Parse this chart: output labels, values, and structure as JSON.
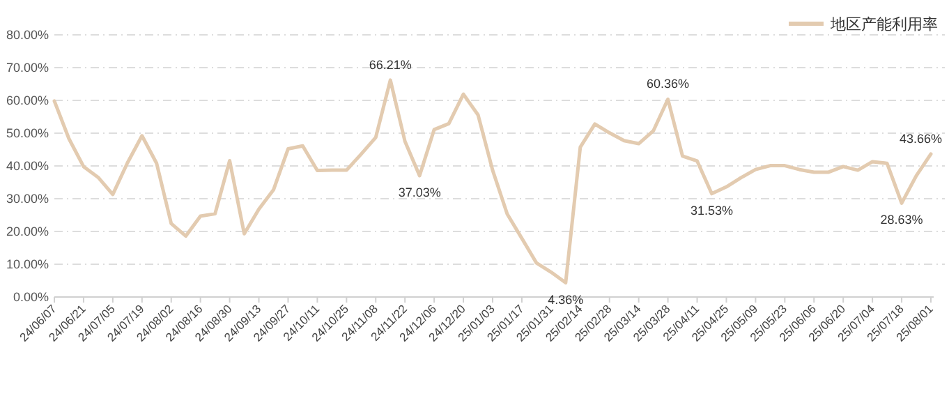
{
  "chart_data": {
    "type": "line",
    "categories": [
      "24/06/07",
      null,
      "24/06/21",
      null,
      "24/07/05",
      null,
      "24/07/19",
      null,
      "24/08/02",
      null,
      "24/08/16",
      null,
      "24/08/30",
      null,
      "24/09/13",
      null,
      "24/09/27",
      null,
      "24/10/11",
      null,
      "24/10/25",
      null,
      "24/11/08",
      null,
      "24/11/22",
      null,
      "24/12/06",
      null,
      "24/12/20",
      null,
      "25/01/03",
      null,
      "25/01/17",
      null,
      "25/01/31",
      null,
      "25/02/14",
      null,
      "25/02/28",
      null,
      "25/03/14",
      null,
      "25/03/28",
      null,
      "25/04/11",
      null,
      "25/04/25",
      null,
      "25/05/09",
      null,
      "25/05/23",
      null,
      "25/06/06",
      null,
      "25/06/20",
      null,
      "25/07/04",
      null,
      "25/07/18",
      null,
      "25/08/01"
    ],
    "series": [
      {
        "name": "地区产能利用率",
        "color": "#e3cbb0",
        "values": [
          59.8,
          48.3,
          39.8,
          36.5,
          31.3,
          40.9,
          49.2,
          40.8,
          22.4,
          18.6,
          24.7,
          25.4,
          41.6,
          19.3,
          26.8,
          32.7,
          45.2,
          46.1,
          38.6,
          38.7,
          38.7,
          43.6,
          48.7,
          66.21,
          47.5,
          37.03,
          51.1,
          52.9,
          61.9,
          55.6,
          38.7,
          25.3,
          17.9,
          10.4,
          7.6,
          4.36,
          45.7,
          52.8,
          50.1,
          47.7,
          46.8,
          50.7,
          60.36,
          43.0,
          41.5,
          31.53,
          33.6,
          36.4,
          38.9,
          40.1,
          40.1,
          38.9,
          38.1,
          38.1,
          39.8,
          38.7,
          41.3,
          40.8,
          28.63,
          37.0,
          43.66
        ],
        "value_labels": [
          null,
          null,
          null,
          null,
          null,
          null,
          null,
          null,
          null,
          null,
          null,
          null,
          null,
          null,
          null,
          null,
          null,
          null,
          null,
          null,
          null,
          null,
          null,
          "66.21%",
          null,
          "37.03%",
          null,
          null,
          null,
          null,
          null,
          null,
          null,
          null,
          null,
          "4.36%",
          null,
          null,
          null,
          null,
          null,
          null,
          "60.36%",
          null,
          null,
          "31.53%",
          null,
          null,
          null,
          null,
          null,
          null,
          null,
          null,
          null,
          null,
          null,
          null,
          "28.63%",
          null,
          "43.66%"
        ]
      }
    ],
    "ylim": [
      0,
      80
    ],
    "yticks": [
      {
        "value": 0,
        "label": "0.00%"
      },
      {
        "value": 10,
        "label": "10.00%"
      },
      {
        "value": 20,
        "label": "20.00%"
      },
      {
        "value": 30,
        "label": "30.00%"
      },
      {
        "value": 40,
        "label": "40.00%"
      },
      {
        "value": 50,
        "label": "50.00%"
      },
      {
        "value": 60,
        "label": "60.00%"
      },
      {
        "value": 70,
        "label": "70.00%"
      },
      {
        "value": 80,
        "label": "80.00%"
      }
    ],
    "grid": "y",
    "legend": "top right",
    "marker": "none",
    "line_style": "solid"
  }
}
